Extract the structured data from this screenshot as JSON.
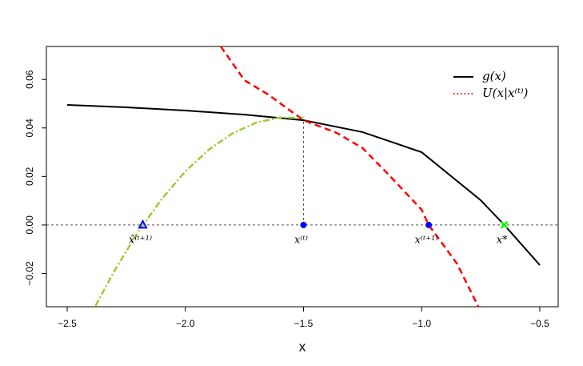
{
  "chart_data": {
    "type": "line",
    "x_label": "x",
    "xlim": [
      -2.588,
      -0.422
    ],
    "ylim": [
      -0.0337,
      0.0736
    ],
    "xticks": [
      {
        "value": -2.5,
        "label": "−2.5"
      },
      {
        "value": -2.0,
        "label": "−2.0"
      },
      {
        "value": -1.5,
        "label": "−1.5"
      },
      {
        "value": -1.0,
        "label": "−1.0"
      },
      {
        "value": -0.5,
        "label": "−0.5"
      }
    ],
    "yticks": [
      {
        "value": -0.02,
        "label": "−0.02"
      },
      {
        "value": 0,
        "label": "0.00"
      },
      0.02,
      0.04,
      0.06
    ],
    "series": [
      {
        "name": "g(x)",
        "color": "#000000",
        "dash": "solid",
        "legend_dash": "solid",
        "x": [
          -2.5,
          -2.25,
          -2.0,
          -1.75,
          -1.5,
          -1.25,
          -1.0,
          -0.75,
          -0.65,
          -0.5
        ],
        "values": [
          0.0495,
          0.0485,
          0.0472,
          0.0455,
          0.0432,
          0.0383,
          0.03,
          0.0102,
          0.0,
          -0.0165
        ]
      },
      {
        "name": "U(x|x⁽ᵗ⁾)",
        "color": "#ff0000",
        "dash": "dashed",
        "legend_dash": "dotted",
        "x": [
          -1.85,
          -1.75,
          -1.65,
          -1.5,
          -1.36,
          -1.25,
          -1.15,
          -1.0,
          -0.97,
          -0.85,
          -0.76
        ],
        "values": [
          0.0736,
          0.0597,
          0.0538,
          0.0432,
          0.038,
          0.0317,
          0.0218,
          0.0063,
          0.0,
          -0.016,
          -0.0337
        ]
      },
      {
        "color": "#9acd32",
        "dash": "dashdot",
        "x": [
          -2.38,
          -2.3,
          -2.2,
          -2.1,
          -2.0,
          -1.9,
          -1.8,
          -1.7,
          -1.6,
          -1.5
        ],
        "values": [
          -0.0333,
          -0.0189,
          -0.0029,
          0.0107,
          0.0221,
          0.0311,
          0.0378,
          0.0422,
          0.0443,
          0.0441
        ]
      }
    ],
    "hlines": [
      0
    ],
    "segments": [
      {
        "x": [
          -1.5,
          -1.5
        ],
        "y": [
          0,
          0.0432
        ]
      }
    ],
    "markers": [
      {
        "x": -2.18,
        "y": 0,
        "label": "x̂⁽ᵗ⁺¹⁾",
        "color": "#0000ff",
        "shape": "triangle"
      },
      {
        "x": -1.5,
        "y": 0,
        "label": "x⁽ᵗ⁾",
        "color": "#0000ff",
        "shape": "circle"
      },
      {
        "x": -0.97,
        "y": 0,
        "label": "x⁽ᵗ⁺¹⁾",
        "color": "#0000ff",
        "shape": "circle"
      },
      {
        "x": -0.65,
        "y": 0,
        "label": "x*",
        "color": "#00ff00",
        "shape": "cross"
      }
    ],
    "legend": "topright"
  }
}
